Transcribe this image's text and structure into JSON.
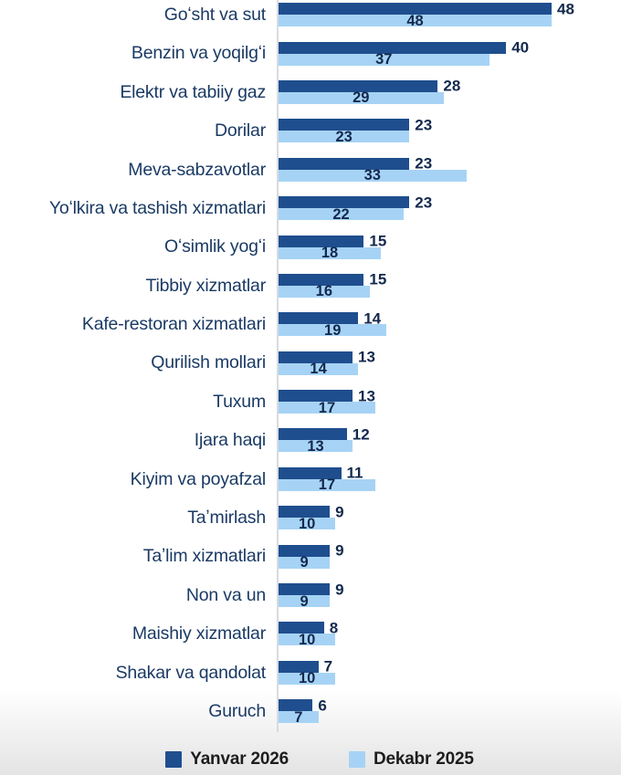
{
  "chart_data": {
    "type": "bar",
    "orientation": "horizontal",
    "title": "",
    "xlabel": "",
    "ylabel": "",
    "xlim": [
      0,
      48
    ],
    "grid": false,
    "legend_position": "bottom",
    "value_labels": "dark series labeled outside bar end, light series labeled centered inside bar",
    "categories": [
      "Goʻsht va sut",
      "Benzin va yoqilgʻi",
      "Elektr va tabiiy gaz",
      "Dorilar",
      "Meva-sabzavotlar",
      "Yoʻlkira va tashish xizmatlari",
      "Oʻsimlik yogʻi",
      "Tibbiy xizmatlar",
      "Kafe-restoran xizmatlari",
      "Qurilish mollari",
      "Tuxum",
      "Ijara haqi",
      "Kiyim va poyafzal",
      "Taʼmirlash",
      "Taʼlim xizmatlari",
      "Non va un",
      "Maishiy xizmatlar",
      "Shakar va qandolat",
      "Guruch"
    ],
    "series": [
      {
        "name": "Yanvar 2026",
        "color": "#1F4E8E",
        "values": [
          48,
          40,
          28,
          23,
          23,
          23,
          15,
          15,
          14,
          13,
          13,
          12,
          11,
          9,
          9,
          9,
          8,
          7,
          6
        ]
      },
      {
        "name": "Dekabr 2025",
        "color": "#A6D3F5",
        "values": [
          48,
          37,
          29,
          23,
          33,
          22,
          18,
          16,
          19,
          14,
          17,
          13,
          17,
          10,
          9,
          9,
          10,
          10,
          7
        ]
      }
    ]
  },
  "legend": {
    "items": [
      {
        "label": "Yanvar 2026",
        "color": "#1F4E8E"
      },
      {
        "label": "Dekabr 2025",
        "color": "#A6D3F5"
      }
    ]
  },
  "colors": {
    "series_dark": "#1F4E8E",
    "series_light": "#A6D3F5",
    "category_text": "#1A3A64",
    "value_text": "#13294D",
    "legend_text": "#1D1D1D",
    "axis_line": "#D8DBE0",
    "background": "#FFFFFF"
  }
}
